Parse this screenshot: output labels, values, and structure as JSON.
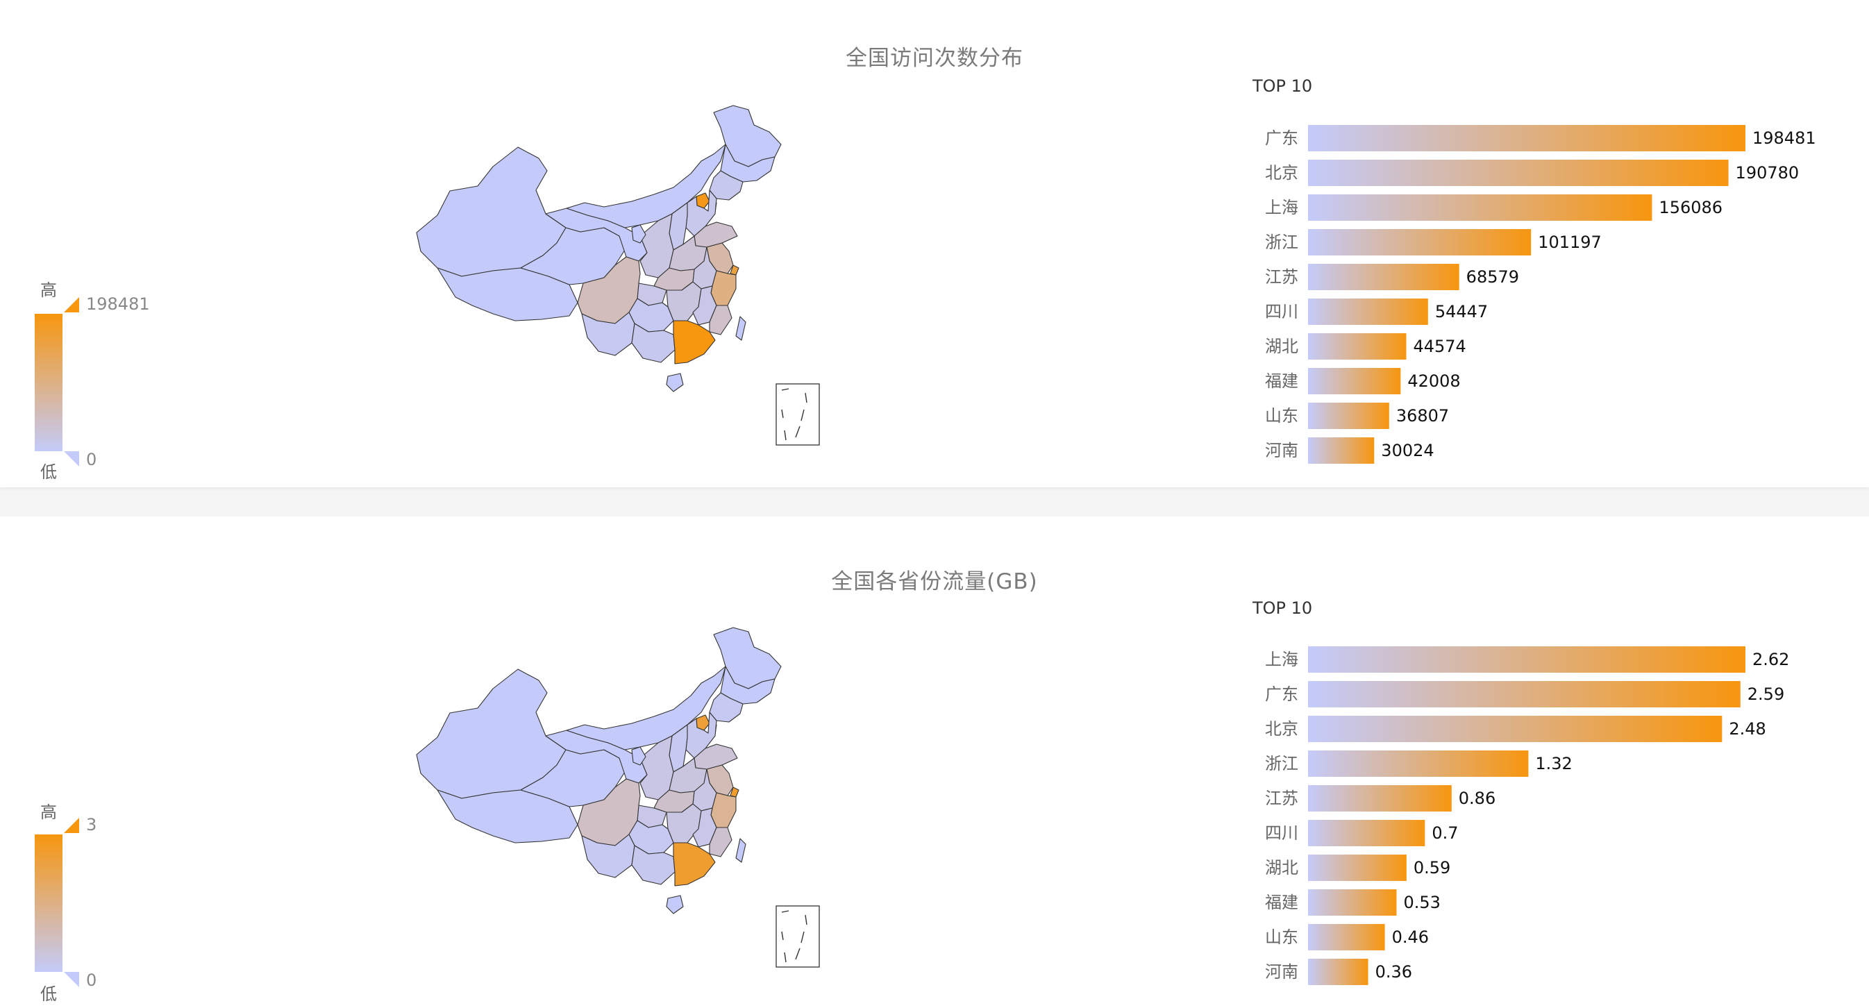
{
  "colors": {
    "low": "#c4cbfa",
    "high": "#f7960f"
  },
  "charts": [
    {
      "title": "全国访问次数分布",
      "top_label": "TOP 10",
      "visual_map": {
        "high_label": "高",
        "low_label": "低",
        "max": "198481",
        "min": "0"
      },
      "province_levels": {
        "guangdong": 1.0,
        "beijing": 0.96,
        "shanghai": 0.79,
        "zhejiang": 0.51,
        "jiangsu": 0.35,
        "sichuan": 0.27,
        "hubei": 0.22,
        "fujian": 0.21,
        "shandong": 0.19,
        "henan": 0.15,
        "hunan": 0.12,
        "shaanxi": 0.1,
        "anhui": 0.1,
        "jiangxi": 0.08,
        "chongqing": 0.08,
        "hebei": 0.06,
        "guangxi": 0.05,
        "yunnan": 0.04,
        "tianjin": 0.06,
        "liaoning": 0.05,
        "shanxi": 0.05,
        "guizhou": 0.04
      }
    },
    {
      "title": "全国各省份流量(GB)",
      "top_label": "TOP 10",
      "visual_map": {
        "high_label": "高",
        "low_label": "低",
        "max": "3",
        "min": "0"
      },
      "province_levels": {
        "guangdong": 0.86,
        "beijing": 0.83,
        "shanghai": 0.87,
        "zhejiang": 0.44,
        "jiangsu": 0.29,
        "sichuan": 0.23,
        "hubei": 0.2,
        "fujian": 0.18,
        "shandong": 0.15,
        "henan": 0.12,
        "hunan": 0.1,
        "shaanxi": 0.09,
        "anhui": 0.09,
        "jiangxi": 0.07,
        "chongqing": 0.07,
        "hebei": 0.05,
        "guangxi": 0.05,
        "yunnan": 0.04,
        "tianjin": 0.05,
        "liaoning": 0.04,
        "shanxi": 0.04,
        "guizhou": 0.04
      }
    }
  ],
  "chart_data": [
    {
      "type": "bar",
      "title": "TOP 10",
      "orientation": "horizontal",
      "categories": [
        "广东",
        "北京",
        "上海",
        "浙江",
        "江苏",
        "四川",
        "湖北",
        "福建",
        "山东",
        "河南"
      ],
      "values": [
        198481,
        190780,
        156086,
        101197,
        68579,
        54447,
        44574,
        42008,
        36807,
        30024
      ],
      "value_labels": [
        "198481",
        "190780",
        "156086",
        "101197",
        "68579",
        "54447",
        "44574",
        "42008",
        "36807",
        "30024"
      ],
      "xlim": [
        0,
        198481
      ],
      "grid": false
    },
    {
      "type": "bar",
      "title": "TOP 10",
      "orientation": "horizontal",
      "categories": [
        "上海",
        "广东",
        "北京",
        "浙江",
        "江苏",
        "四川",
        "湖北",
        "福建",
        "山东",
        "河南"
      ],
      "values": [
        2.62,
        2.59,
        2.48,
        1.32,
        0.86,
        0.7,
        0.59,
        0.53,
        0.46,
        0.36
      ],
      "value_labels": [
        "2.62",
        "2.59",
        "2.48",
        "1.32",
        "0.86",
        "0.7",
        "0.59",
        "0.53",
        "0.46",
        "0.36"
      ],
      "xlim": [
        0,
        2.62
      ],
      "grid": false
    }
  ]
}
